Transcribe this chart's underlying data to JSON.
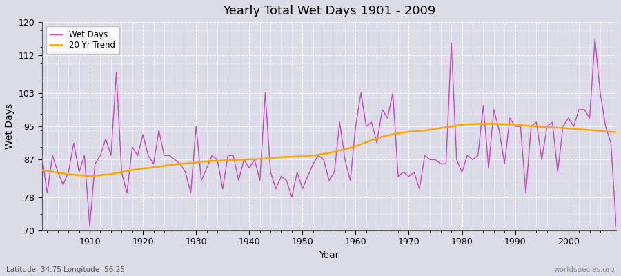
{
  "title": "Yearly Total Wet Days 1901 - 2009",
  "xlabel": "Year",
  "ylabel": "Wet Days",
  "subtitle": "Latitude -34.75 Longitude -56.25",
  "watermark": "worldspecies.org",
  "ylim": [
    70,
    120
  ],
  "yticks": [
    70,
    78,
    87,
    95,
    103,
    112,
    120
  ],
  "line_color": "#CC44BB",
  "trend_color": "#FFA500",
  "background_color": "#DCDCE8",
  "plot_bg_color": "#DCDCE8",
  "years": [
    1901,
    1902,
    1903,
    1904,
    1905,
    1906,
    1907,
    1908,
    1909,
    1910,
    1911,
    1912,
    1913,
    1914,
    1915,
    1916,
    1917,
    1918,
    1919,
    1920,
    1921,
    1922,
    1923,
    1924,
    1925,
    1926,
    1927,
    1928,
    1929,
    1930,
    1931,
    1932,
    1933,
    1934,
    1935,
    1936,
    1937,
    1938,
    1939,
    1940,
    1941,
    1942,
    1943,
    1944,
    1945,
    1946,
    1947,
    1948,
    1949,
    1950,
    1951,
    1952,
    1953,
    1954,
    1955,
    1956,
    1957,
    1958,
    1959,
    1960,
    1961,
    1962,
    1963,
    1964,
    1965,
    1966,
    1967,
    1968,
    1969,
    1970,
    1971,
    1972,
    1973,
    1974,
    1975,
    1976,
    1977,
    1978,
    1979,
    1980,
    1981,
    1982,
    1983,
    1984,
    1985,
    1986,
    1987,
    1988,
    1989,
    1990,
    1991,
    1992,
    1993,
    1994,
    1995,
    1996,
    1997,
    1998,
    1999,
    2000,
    2001,
    2002,
    2003,
    2004,
    2005,
    2006,
    2007,
    2008,
    2009
  ],
  "wet_days": [
    88,
    79,
    88,
    84,
    81,
    84,
    91,
    84,
    88,
    71,
    86,
    88,
    92,
    88,
    108,
    84,
    79,
    90,
    88,
    93,
    88,
    86,
    94,
    88,
    88,
    87,
    86,
    84,
    79,
    95,
    82,
    85,
    88,
    87,
    80,
    88,
    88,
    82,
    87,
    85,
    87,
    82,
    103,
    84,
    80,
    83,
    82,
    78,
    84,
    80,
    83,
    86,
    88,
    87,
    82,
    84,
    96,
    87,
    82,
    95,
    103,
    95,
    96,
    91,
    99,
    97,
    103,
    83,
    84,
    83,
    84,
    80,
    88,
    87,
    87,
    86,
    86,
    115,
    87,
    84,
    88,
    87,
    88,
    100,
    85,
    99,
    94,
    86,
    97,
    95,
    95,
    79,
    95,
    96,
    87,
    95,
    96,
    84,
    95,
    97,
    95,
    99,
    99,
    97,
    116,
    103,
    95,
    91,
    71
  ],
  "trend": [
    84.5,
    84.3,
    84.1,
    83.9,
    83.7,
    83.5,
    83.4,
    83.3,
    83.2,
    83.1,
    83.2,
    83.3,
    83.4,
    83.5,
    83.8,
    84.0,
    84.3,
    84.5,
    84.7,
    84.9,
    85.0,
    85.2,
    85.3,
    85.5,
    85.7,
    85.8,
    86.0,
    86.1,
    86.2,
    86.3,
    86.5,
    86.6,
    86.7,
    86.7,
    86.8,
    86.9,
    86.9,
    87.0,
    87.0,
    87.1,
    87.1,
    87.2,
    87.3,
    87.4,
    87.5,
    87.6,
    87.7,
    87.7,
    87.8,
    87.8,
    87.9,
    88.0,
    88.2,
    88.4,
    88.6,
    88.9,
    89.2,
    89.5,
    89.8,
    90.2,
    90.7,
    91.2,
    91.7,
    92.1,
    92.5,
    92.8,
    93.1,
    93.3,
    93.5,
    93.7,
    93.8,
    93.9,
    94.0,
    94.2,
    94.4,
    94.6,
    94.8,
    95.0,
    95.2,
    95.4,
    95.5,
    95.5,
    95.6,
    95.6,
    95.6,
    95.6,
    95.5,
    95.5,
    95.5,
    95.4,
    95.3,
    95.2,
    95.1,
    95.0,
    94.9,
    94.8,
    94.8,
    94.7,
    94.6,
    94.5,
    94.4,
    94.3,
    94.2,
    94.1,
    94.0,
    93.9,
    93.8,
    93.7,
    93.6
  ]
}
